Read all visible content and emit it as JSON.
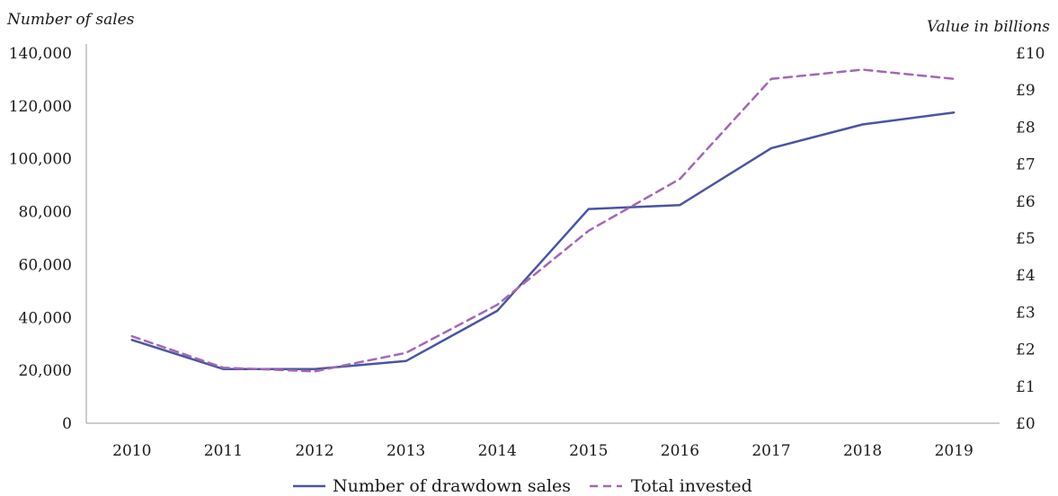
{
  "chart_data": {
    "type": "line",
    "categories": [
      "2010",
      "2011",
      "2012",
      "2013",
      "2014",
      "2015",
      "2016",
      "2017",
      "2018",
      "2019"
    ],
    "ylabel_left": "Number of sales",
    "ylabel_right": "Value in billions",
    "yleft_ticks": [
      "0",
      "20,000",
      "40,000",
      "60,000",
      "80,000",
      "100,000",
      "120,000",
      "140,000"
    ],
    "yright_ticks": [
      "£0",
      "£1",
      "£2",
      "£3",
      "£4",
      "£5",
      "£6",
      "£7",
      "£8",
      "£9",
      "£10"
    ],
    "yleft_lim": [
      0,
      140000
    ],
    "yright_lim": [
      0,
      10
    ],
    "grid": false,
    "legend_position": "bottom",
    "series": [
      {
        "name": "Number of drawdown sales",
        "axis": "left",
        "style": "solid",
        "color": "#4a55a2",
        "values": [
          31500,
          20500,
          20500,
          23500,
          42500,
          81000,
          82500,
          104000,
          113000,
          117500
        ]
      },
      {
        "name": "Total invested",
        "axis": "right",
        "style": "dashed",
        "color": "#a566b4",
        "values": [
          2.35,
          1.5,
          1.4,
          1.9,
          3.2,
          5.2,
          6.6,
          9.3,
          9.55,
          9.3
        ]
      }
    ]
  }
}
